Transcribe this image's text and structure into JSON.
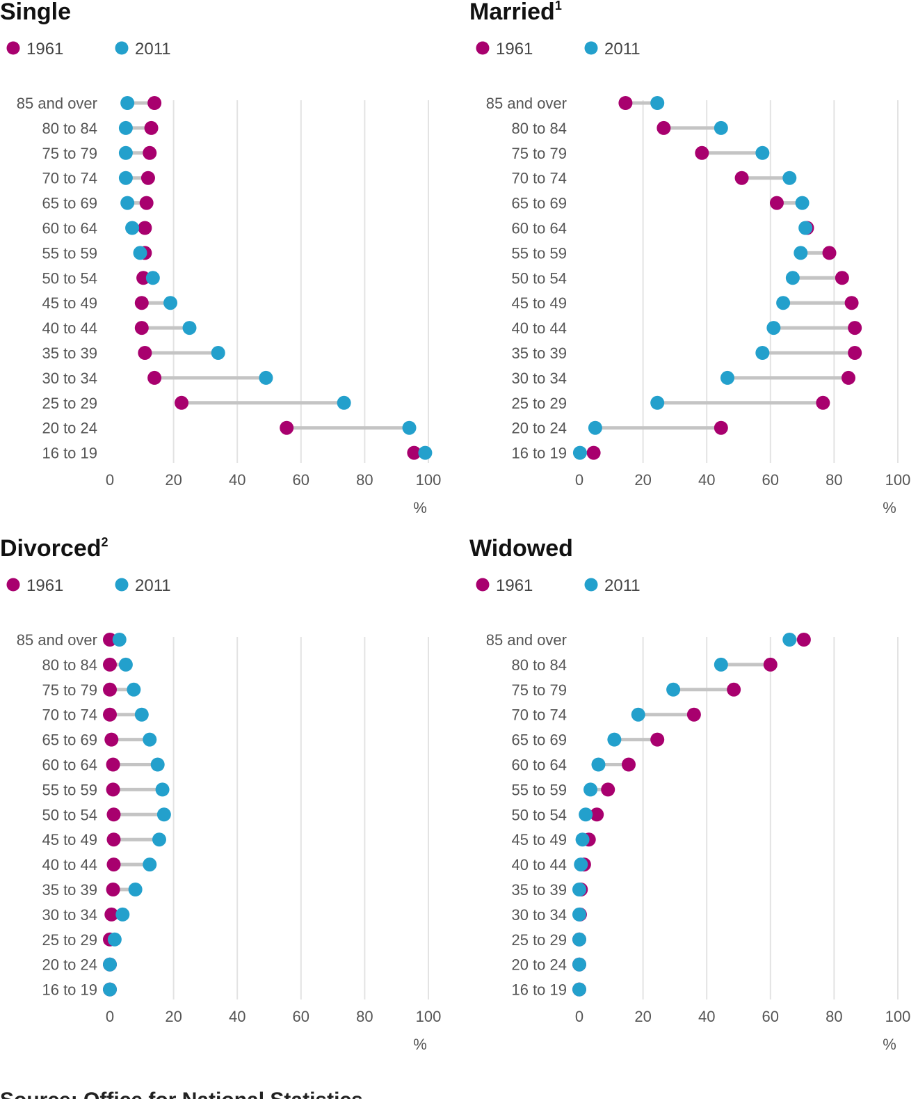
{
  "colors": {
    "y1961": "#a8006e",
    "y2011": "#23a0cc",
    "connector": "#c4c4c4",
    "grid": "#e3e3e3"
  },
  "legend": {
    "first": "1961",
    "second": "2011"
  },
  "source": "Source: Office for National Statistics",
  "chart_data": [
    {
      "type": "dumbbell",
      "title": "Single",
      "title_sup": "",
      "unit": "%",
      "xlim": [
        0,
        100
      ],
      "xticks": [
        0,
        20,
        40,
        60,
        80,
        100
      ],
      "grid": true,
      "categories": [
        "85 and over",
        "80 to 84",
        "75 to 79",
        "70 to 74",
        "65 to 69",
        "60 to 64",
        "55 to 59",
        "50 to 54",
        "45 to 49",
        "40 to 44",
        "35 to 39",
        "30 to 34",
        "25 to 29",
        "20 to 24",
        "16 to 19"
      ],
      "series": [
        {
          "name": "1961",
          "values": [
            14.0,
            13.0,
            12.5,
            12.0,
            11.5,
            11.0,
            11.0,
            10.5,
            10.0,
            10.0,
            11.0,
            14.0,
            22.5,
            55.5,
            95.5
          ]
        },
        {
          "name": "2011",
          "values": [
            5.5,
            5.0,
            5.0,
            5.0,
            5.5,
            7.0,
            9.5,
            13.5,
            19.0,
            25.0,
            34.0,
            49.0,
            73.5,
            94.0,
            99.0
          ]
        }
      ]
    },
    {
      "type": "dumbbell",
      "title": "Married",
      "title_sup": "1",
      "unit": "%",
      "xlim": [
        0,
        100
      ],
      "xticks": [
        0,
        20,
        40,
        60,
        80,
        100
      ],
      "grid": true,
      "categories": [
        "85 and over",
        "80 to 84",
        "75 to 79",
        "70 to 74",
        "65 to 69",
        "60 to 64",
        "55 to 59",
        "50 to 54",
        "45 to 49",
        "40 to 44",
        "35 to 39",
        "30 to 34",
        "25 to 29",
        "20 to 24",
        "16 to 19"
      ],
      "series": [
        {
          "name": "1961",
          "values": [
            14.5,
            26.5,
            38.5,
            51.0,
            62.0,
            71.5,
            78.5,
            82.5,
            85.5,
            86.5,
            86.5,
            84.5,
            76.5,
            44.5,
            4.5
          ]
        },
        {
          "name": "2011",
          "values": [
            24.5,
            44.5,
            57.5,
            66.0,
            70.0,
            71.0,
            69.5,
            67.0,
            64.0,
            61.0,
            57.5,
            46.5,
            24.5,
            5.0,
            0.2
          ]
        }
      ]
    },
    {
      "type": "dumbbell",
      "title": "Divorced",
      "title_sup": "2",
      "unit": "%",
      "xlim": [
        0,
        100
      ],
      "xticks": [
        0,
        20,
        40,
        60,
        80,
        100
      ],
      "grid": true,
      "categories": [
        "85 and over",
        "80 to 84",
        "75 to 79",
        "70 to 74",
        "65 to 69",
        "60 to 64",
        "55 to 59",
        "50 to 54",
        "45 to 49",
        "40 to 44",
        "35 to 39",
        "30 to 34",
        "25 to 29",
        "20 to 24",
        "16 to 19"
      ],
      "series": [
        {
          "name": "1961",
          "values": [
            0.0,
            0.0,
            0.0,
            0.0,
            0.5,
            1.0,
            1.0,
            1.2,
            1.2,
            1.2,
            1.0,
            0.5,
            0.0,
            0.0,
            0.0
          ]
        },
        {
          "name": "2011",
          "values": [
            3.0,
            5.0,
            7.5,
            10.0,
            12.5,
            15.0,
            16.5,
            17.0,
            15.5,
            12.5,
            8.0,
            4.0,
            1.5,
            0.0,
            0.0
          ]
        }
      ]
    },
    {
      "type": "dumbbell",
      "title": "Widowed",
      "title_sup": "",
      "unit": "%",
      "xlim": [
        0,
        100
      ],
      "xticks": [
        0,
        20,
        40,
        60,
        80,
        100
      ],
      "grid": true,
      "categories": [
        "85 and over",
        "80 to 84",
        "75 to 79",
        "70 to 74",
        "65 to 69",
        "60 to 64",
        "55 to 59",
        "50 to 54",
        "45 to 49",
        "40 to 44",
        "35 to 39",
        "30 to 34",
        "25 to 29",
        "20 to 24",
        "16 to 19"
      ],
      "series": [
        {
          "name": "1961",
          "values": [
            70.5,
            60.0,
            48.5,
            36.0,
            24.5,
            15.5,
            9.0,
            5.5,
            3.0,
            1.5,
            0.5,
            0.2,
            0.0,
            0.0,
            0.0
          ]
        },
        {
          "name": "2011",
          "values": [
            66.0,
            44.5,
            29.5,
            18.5,
            11.0,
            6.0,
            3.5,
            2.0,
            1.0,
            0.5,
            0.0,
            0.0,
            0.0,
            0.0,
            0.0
          ]
        }
      ]
    }
  ]
}
